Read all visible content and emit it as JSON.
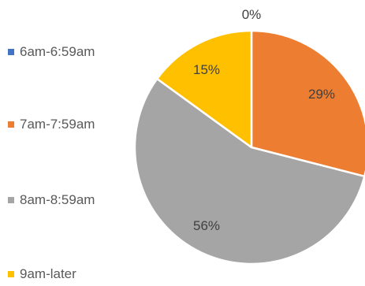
{
  "chart_data": {
    "type": "pie",
    "categories": [
      "6am-6:59am",
      "7am-7:59am",
      "8am-8:59am",
      "9am-later"
    ],
    "values": [
      0,
      29,
      56,
      15
    ],
    "labels": [
      "0%",
      "29%",
      "56%",
      "15%"
    ],
    "colors": [
      "#4472C4",
      "#ED7D31",
      "#A5A5A5",
      "#FFC000"
    ],
    "legend_position": "left",
    "start_angle_deg": 0,
    "direction": "clockwise"
  }
}
